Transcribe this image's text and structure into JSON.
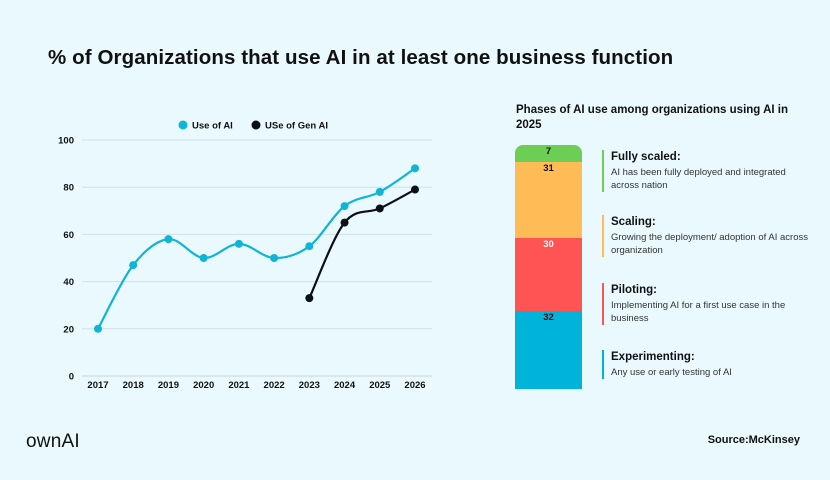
{
  "title": "% of Organizations that use AI in at least one business function",
  "brand": "ownAI",
  "source": "Source:McKinsey",
  "chart_data": [
    {
      "type": "line",
      "x": [
        "2017",
        "2018",
        "2019",
        "2020",
        "2021",
        "2022",
        "2023",
        "2024",
        "2025",
        "2026"
      ],
      "series": [
        {
          "name": "Use of AI",
          "color": "#10b4d4",
          "values": [
            20,
            47,
            58,
            50,
            56,
            50,
            55,
            72,
            78,
            88
          ]
        },
        {
          "name": "USe of Gen AI",
          "color": "#0d0f1a",
          "values": [
            null,
            null,
            null,
            null,
            null,
            null,
            33,
            65,
            71,
            79
          ]
        }
      ],
      "ylim": [
        0,
        100
      ],
      "yticks": [
        "0",
        "20",
        "40",
        "60",
        "80",
        "100"
      ],
      "grid": true,
      "smooth": true,
      "legend": "top"
    },
    {
      "type": "bar",
      "stacked": true,
      "title": "Phases of AI use among organizations using AI in 2025",
      "segments": [
        {
          "label": "32",
          "value": 32,
          "color": "#00b3d9",
          "label_color": "#111",
          "name": "Experimenting:",
          "description": "Any use or early testing of AI"
        },
        {
          "label": "30",
          "value": 30,
          "color": "#ff5454",
          "label_color": "#ffffff",
          "name": "Piloting:",
          "description": "Implementing AI for a first use case in the business"
        },
        {
          "label": "31",
          "value": 31,
          "color": "#ffbb55",
          "label_color": "#111",
          "name": "Scaling:",
          "description": "Growing the deployment/ adoption of AI across organization"
        },
        {
          "label": "7",
          "value": 7,
          "color": "#6bcf55",
          "label_color": "#111",
          "name": "Fully scaled:",
          "description": "AI has been fully deployed and integrated across nation"
        }
      ]
    }
  ]
}
